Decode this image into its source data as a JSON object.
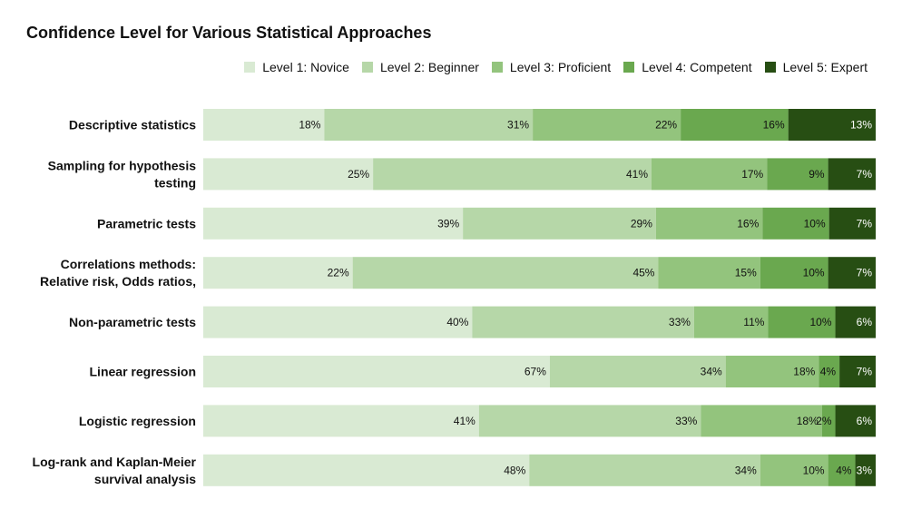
{
  "chart_data": {
    "type": "bar",
    "orientation": "horizontal",
    "stacked": true,
    "title": "Confidence Level for Various Statistical Approaches",
    "xlabel": "",
    "ylabel": "",
    "legend_position": "top-right",
    "grid": false,
    "categories": [
      [
        "Descriptive statistics"
      ],
      [
        "Sampling for hypothesis",
        "testing"
      ],
      [
        "Parametric tests"
      ],
      [
        "Correlations methods:",
        "Relative risk, Odds ratios,"
      ],
      [
        "Non-parametric tests"
      ],
      [
        "Linear regression"
      ],
      [
        "Logistic regression"
      ],
      [
        "Log-rank and Kaplan-Meier",
        "survival analysis"
      ]
    ],
    "series": [
      {
        "name": "Level 1: Novice",
        "color": "#d9ead3",
        "values": [
          18,
          25,
          39,
          22,
          40,
          67,
          41,
          48
        ]
      },
      {
        "name": "Level 2: Beginner",
        "color": "#b6d7a8",
        "values": [
          31,
          41,
          29,
          45,
          33,
          34,
          33,
          34
        ]
      },
      {
        "name": "Level 3: Proficient",
        "color": "#93c47d",
        "values": [
          22,
          17,
          16,
          15,
          11,
          18,
          18,
          10
        ]
      },
      {
        "name": "Level 4: Competent",
        "color": "#6aa84f",
        "values": [
          16,
          9,
          10,
          10,
          10,
          4,
          2,
          4
        ]
      },
      {
        "name": "Level 5: Expert",
        "color": "#274e13",
        "values": [
          13,
          7,
          7,
          7,
          6,
          7,
          6,
          3
        ]
      }
    ],
    "value_suffix": "%"
  }
}
